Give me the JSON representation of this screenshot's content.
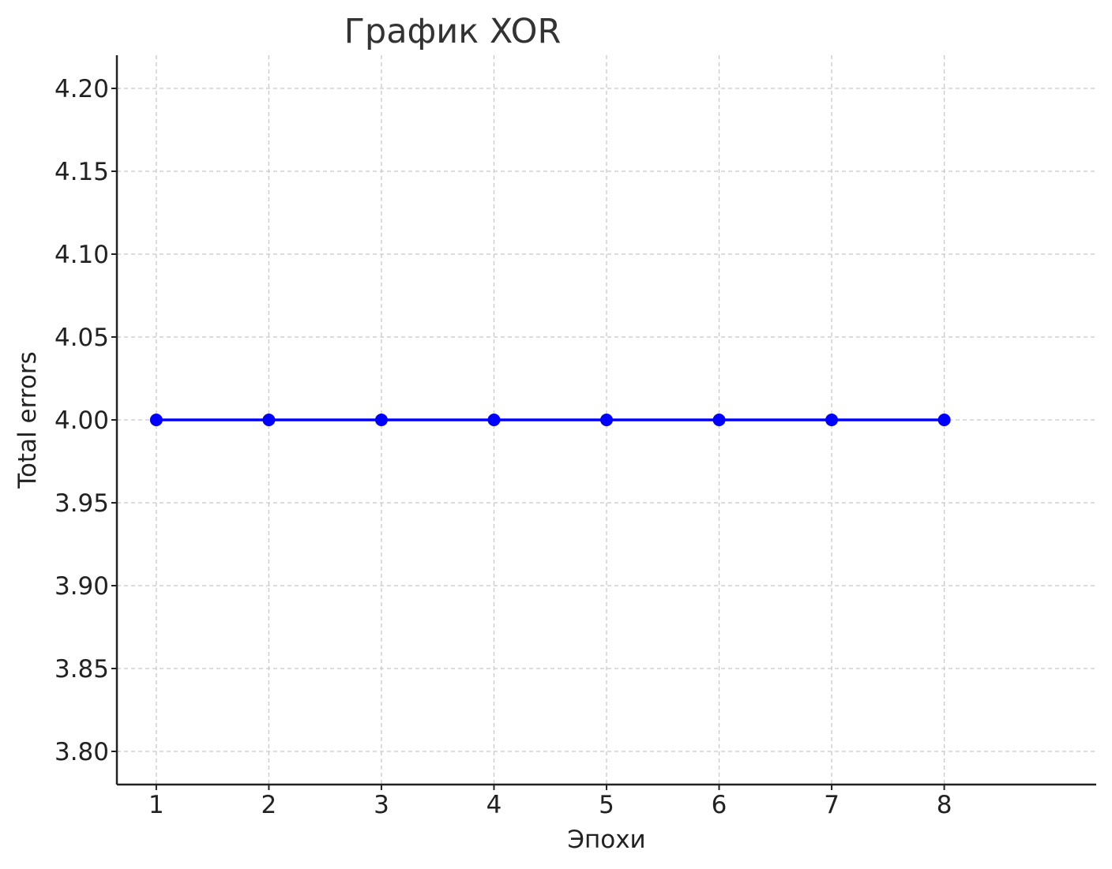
{
  "chart_data": {
    "type": "line",
    "title": "График XOR",
    "xlabel": "Эпохи",
    "ylabel": "Total errors",
    "x": [
      1,
      2,
      3,
      4,
      5,
      6,
      7,
      8
    ],
    "x_tick_labels": [
      "1",
      "2",
      "3",
      "4",
      "5",
      "6",
      "7",
      "8"
    ],
    "y_ticks": [
      3.8,
      3.85,
      3.9,
      3.95,
      4.0,
      4.05,
      4.1,
      4.15,
      4.2
    ],
    "y_tick_labels": [
      "3.80",
      "3.85",
      "3.90",
      "3.95",
      "4.00",
      "4.05",
      "4.10",
      "4.15",
      "4.20"
    ],
    "xlim": [
      0.65,
      9.35
    ],
    "ylim": [
      3.78,
      4.22
    ],
    "grid": true,
    "series": [
      {
        "values": [
          4,
          4,
          4,
          4,
          4,
          4,
          4,
          4
        ],
        "color": "#0000ff",
        "marker": "circle"
      }
    ]
  }
}
